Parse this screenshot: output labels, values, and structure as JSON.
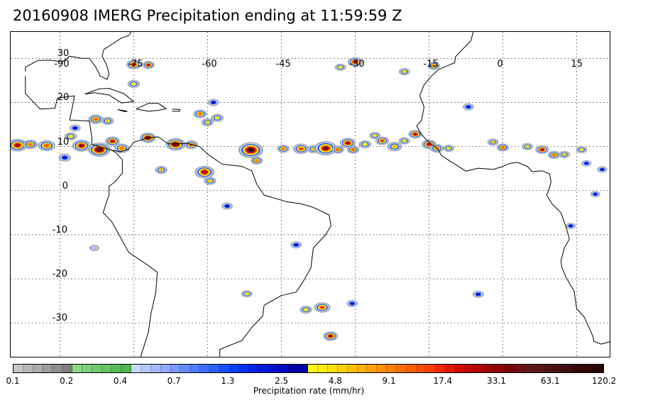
{
  "title": "20160908 IMERG Precipitation ending at 11:59:59 Z",
  "map": {
    "lon_range": [
      -100,
      22
    ],
    "lat_range": [
      -38,
      36
    ],
    "grid_lines": true,
    "lon_ticks": [
      {
        "value": -90,
        "label": "-90"
      },
      {
        "value": -75,
        "label": "-75"
      },
      {
        "value": -60,
        "label": "-60"
      },
      {
        "value": -45,
        "label": "-45"
      },
      {
        "value": -30,
        "label": "-30"
      },
      {
        "value": -15,
        "label": "-15"
      },
      {
        "value": 0,
        "label": "0"
      },
      {
        "value": 15,
        "label": "15"
      }
    ],
    "lat_ticks": [
      {
        "value": 30,
        "label": "30"
      },
      {
        "value": 20,
        "label": "20"
      },
      {
        "value": 10,
        "label": "10"
      },
      {
        "value": 0,
        "label": "0"
      },
      {
        "value": -10,
        "label": "-10"
      },
      {
        "value": -20,
        "label": "-20"
      },
      {
        "value": -30,
        "label": "-30"
      }
    ],
    "coastline_color": "#000000",
    "coastlines": [
      [
        [
          -97,
          26
        ],
        [
          -97,
          22
        ],
        [
          -94,
          18.5
        ],
        [
          -91,
          18.7
        ],
        [
          -90.5,
          21
        ],
        [
          -87,
          21.5
        ],
        [
          -88,
          16
        ],
        [
          -84,
          15.8
        ],
        [
          -83.5,
          12
        ],
        [
          -83.5,
          10.5
        ],
        [
          -79.5,
          9.2
        ],
        [
          -77.8,
          8.8
        ],
        [
          -76,
          9.4
        ],
        [
          -75,
          11
        ],
        [
          -72,
          12
        ],
        [
          -70,
          12.2
        ],
        [
          -68,
          10.6
        ],
        [
          -64,
          10.7
        ],
        [
          -61.6,
          10
        ],
        [
          -60,
          8.3
        ],
        [
          -57,
          6
        ],
        [
          -53,
          5.5
        ],
        [
          -51,
          4.5
        ],
        [
          -50,
          1.5
        ],
        [
          -48.5,
          -1
        ],
        [
          -44,
          -2.5
        ],
        [
          -41,
          -3
        ],
        [
          -38.5,
          -3.8
        ],
        [
          -35.3,
          -5.5
        ],
        [
          -34.9,
          -8
        ],
        [
          -36,
          -10
        ],
        [
          -38.5,
          -13
        ],
        [
          -39,
          -17.5
        ],
        [
          -40.5,
          -20.5
        ],
        [
          -42,
          -23
        ],
        [
          -45,
          -23.8
        ],
        [
          -48.5,
          -26
        ],
        [
          -48.8,
          -28.5
        ],
        [
          -51,
          -31
        ],
        [
          -53,
          -34
        ],
        [
          -55,
          -34.9
        ],
        [
          -57.5,
          -36
        ],
        [
          -57.5,
          -38
        ]
      ],
      [
        [
          -97,
          -38
        ],
        [
          -73.6,
          -38
        ],
        [
          -73.4,
          -37
        ],
        [
          -72,
          -32
        ],
        [
          -71.5,
          -28
        ],
        [
          -70.5,
          -23
        ],
        [
          -70.2,
          -18.5
        ],
        [
          -72,
          -17
        ],
        [
          -76,
          -14
        ],
        [
          -78,
          -10
        ],
        [
          -79.5,
          -7
        ],
        [
          -81.2,
          -5
        ],
        [
          -80.5,
          -2.5
        ],
        [
          -80,
          -1
        ],
        [
          -80,
          1
        ],
        [
          -78.8,
          2
        ],
        [
          -77.3,
          4
        ],
        [
          -77.3,
          7
        ],
        [
          -78.5,
          8.5
        ],
        [
          -79.5,
          9.2
        ]
      ],
      [
        [
          -85,
          30
        ],
        [
          -84,
          30
        ],
        [
          -82.7,
          28
        ],
        [
          -81.8,
          26
        ],
        [
          -80.4,
          25.2
        ],
        [
          -80,
          26.5
        ],
        [
          -80.5,
          28.5
        ],
        [
          -81.4,
          30.5
        ],
        [
          -81.1,
          32
        ],
        [
          -79,
          33.5
        ],
        [
          -77.5,
          34.6
        ],
        [
          -76,
          35.2
        ],
        [
          -75.5,
          36
        ]
      ],
      [
        [
          -97,
          27
        ],
        [
          -97,
          28
        ],
        [
          -94.5,
          29.5
        ],
        [
          -92,
          29.6
        ],
        [
          -89.5,
          29.2
        ],
        [
          -88,
          30.5
        ],
        [
          -85.5,
          30
        ],
        [
          -85,
          30
        ]
      ],
      [
        [
          -84.9,
          21.9
        ],
        [
          -82,
          23.1
        ],
        [
          -80,
          23.2
        ],
        [
          -77,
          22
        ],
        [
          -75,
          20.2
        ],
        [
          -77.5,
          19.9
        ],
        [
          -80,
          21.7
        ],
        [
          -83,
          22.2
        ],
        [
          -84.9,
          21.9
        ]
      ],
      [
        [
          -74.5,
          18.5
        ],
        [
          -72,
          19.8
        ],
        [
          -70,
          19.8
        ],
        [
          -68.4,
          18.6
        ],
        [
          -70,
          18.2
        ],
        [
          -72,
          18
        ],
        [
          -74.5,
          18.5
        ]
      ],
      [
        [
          -78.3,
          18.4
        ],
        [
          -76.3,
          18
        ],
        [
          -76.8,
          17.9
        ],
        [
          -78.3,
          18.4
        ]
      ],
      [
        [
          -67.2,
          18.5
        ],
        [
          -65.6,
          18.4
        ],
        [
          -65.7,
          18
        ],
        [
          -67.2,
          18
        ]
      ],
      [
        [
          -6,
          36
        ],
        [
          -6.5,
          34
        ],
        [
          -9.6,
          30.4
        ],
        [
          -9.8,
          29
        ],
        [
          -13,
          27.5
        ],
        [
          -14.5,
          26
        ],
        [
          -16,
          24
        ],
        [
          -16.9,
          21.5
        ],
        [
          -16,
          19
        ],
        [
          -16.5,
          16
        ],
        [
          -17.5,
          14.7
        ],
        [
          -16.7,
          13
        ],
        [
          -15.5,
          11.5
        ],
        [
          -14.5,
          10.5
        ],
        [
          -13.2,
          9.5
        ],
        [
          -12.5,
          8
        ],
        [
          -11,
          6.9
        ],
        [
          -9,
          5.5
        ],
        [
          -7.5,
          4.4
        ],
        [
          -5,
          5.1
        ],
        [
          -2,
          4.8
        ],
        [
          0,
          5.5
        ],
        [
          1.5,
          6.2
        ],
        [
          3,
          6.4
        ],
        [
          5,
          5.5
        ],
        [
          6,
          4.3
        ],
        [
          8,
          4.5
        ],
        [
          9.5,
          3.8
        ],
        [
          9.8,
          2
        ],
        [
          9.3,
          0
        ],
        [
          8.9,
          -1
        ],
        [
          10,
          -3
        ],
        [
          11.8,
          -5
        ],
        [
          12.3,
          -6.5
        ],
        [
          13,
          -8.8
        ],
        [
          13.5,
          -11
        ],
        [
          12.5,
          -13
        ],
        [
          11.8,
          -16
        ],
        [
          12,
          -17.5
        ],
        [
          13,
          -20
        ],
        [
          14.5,
          -22.8
        ],
        [
          15,
          -26.8
        ],
        [
          16.5,
          -28.6
        ],
        [
          17.3,
          -30.5
        ],
        [
          18.3,
          -33
        ],
        [
          18.5,
          -34.2
        ],
        [
          20,
          -34.8
        ],
        [
          22,
          -34.2
        ]
      ]
    ]
  },
  "precip_cells": [
    {
      "lon": -98.6,
      "lat": 10.3,
      "r": 1.6,
      "v": 17
    },
    {
      "lon": -96,
      "lat": 10.5,
      "r": 1.2,
      "v": 6
    },
    {
      "lon": -92.7,
      "lat": 10.2,
      "r": 1.4,
      "v": 9
    },
    {
      "lon": -89,
      "lat": 7.5,
      "r": 1.0,
      "v": 2
    },
    {
      "lon": -87.8,
      "lat": 12.3,
      "r": 1.0,
      "v": 3
    },
    {
      "lon": -85.6,
      "lat": 10.2,
      "r": 1.5,
      "v": 25
    },
    {
      "lon": -82,
      "lat": 9.3,
      "r": 1.8,
      "v": 33
    },
    {
      "lon": -79.3,
      "lat": 11.2,
      "r": 1.2,
      "v": 14
    },
    {
      "lon": -77.4,
      "lat": 9.6,
      "r": 1.2,
      "v": 7
    },
    {
      "lon": -82.7,
      "lat": 16.2,
      "r": 1.2,
      "v": 9
    },
    {
      "lon": -80.3,
      "lat": 15.8,
      "r": 1.0,
      "v": 4
    },
    {
      "lon": -86.9,
      "lat": 14.2,
      "r": 0.9,
      "v": 2
    },
    {
      "lon": -75,
      "lat": 28.6,
      "r": 1.2,
      "v": 26
    },
    {
      "lon": -72,
      "lat": 28.5,
      "r": 1.0,
      "v": 15
    },
    {
      "lon": -75,
      "lat": 24.2,
      "r": 1.0,
      "v": 3
    },
    {
      "lon": -72.1,
      "lat": 12,
      "r": 1.3,
      "v": 33
    },
    {
      "lon": -66.5,
      "lat": 10.5,
      "r": 1.6,
      "v": 45
    },
    {
      "lon": -63.3,
      "lat": 10.4,
      "r": 1.1,
      "v": 12
    },
    {
      "lon": -69.4,
      "lat": 4.7,
      "r": 1.0,
      "v": 5
    },
    {
      "lon": -60.6,
      "lat": 4.2,
      "r": 1.6,
      "v": 18
    },
    {
      "lon": -59.5,
      "lat": 2.2,
      "r": 1.0,
      "v": 4
    },
    {
      "lon": -56,
      "lat": -3.5,
      "r": 0.9,
      "v": 2
    },
    {
      "lon": -61.5,
      "lat": 17.4,
      "r": 1.1,
      "v": 7
    },
    {
      "lon": -60,
      "lat": 15.5,
      "r": 1.0,
      "v": 4
    },
    {
      "lon": -58,
      "lat": 16.5,
      "r": 1.0,
      "v": 3
    },
    {
      "lon": -58.8,
      "lat": 20,
      "r": 0.9,
      "v": 2
    },
    {
      "lon": -51.2,
      "lat": 9.2,
      "r": 2.0,
      "v": 55
    },
    {
      "lon": -50,
      "lat": 6.8,
      "r": 1.0,
      "v": 6
    },
    {
      "lon": -44.6,
      "lat": 9.5,
      "r": 1.0,
      "v": 6
    },
    {
      "lon": -41,
      "lat": 9.5,
      "r": 1.3,
      "v": 10
    },
    {
      "lon": -38.5,
      "lat": 9.4,
      "r": 1.0,
      "v": 5
    },
    {
      "lon": -36,
      "lat": 9.6,
      "r": 1.8,
      "v": 28
    },
    {
      "lon": -33.5,
      "lat": 9.3,
      "r": 1.0,
      "v": 8
    },
    {
      "lon": -31.5,
      "lat": 10.8,
      "r": 1.3,
      "v": 16
    },
    {
      "lon": -30.4,
      "lat": 9.3,
      "r": 1.0,
      "v": 9
    },
    {
      "lon": -28,
      "lat": 10.5,
      "r": 1.0,
      "v": 3
    },
    {
      "lon": -24.5,
      "lat": 11.3,
      "r": 1.1,
      "v": 11
    },
    {
      "lon": -26,
      "lat": 12.5,
      "r": 0.9,
      "v": 3
    },
    {
      "lon": -22,
      "lat": 10,
      "r": 1.2,
      "v": 5
    },
    {
      "lon": -20,
      "lat": 11.3,
      "r": 0.9,
      "v": 3
    },
    {
      "lon": -17.8,
      "lat": 12.8,
      "r": 1.1,
      "v": 17
    },
    {
      "lon": -15,
      "lat": 10.5,
      "r": 1.2,
      "v": 14
    },
    {
      "lon": -13.4,
      "lat": 9.6,
      "r": 1.1,
      "v": 6
    },
    {
      "lon": -11,
      "lat": 9.6,
      "r": 0.9,
      "v": 3
    },
    {
      "lon": -30,
      "lat": 29.2,
      "r": 1.2,
      "v": 17
    },
    {
      "lon": -33,
      "lat": 28,
      "r": 0.9,
      "v": 3
    },
    {
      "lon": -14,
      "lat": 28.3,
      "r": 1.0,
      "v": 7
    },
    {
      "lon": -20,
      "lat": 27,
      "r": 0.9,
      "v": 3
    },
    {
      "lon": -7,
      "lat": 19,
      "r": 0.9,
      "v": 2
    },
    {
      "lon": -2,
      "lat": 11,
      "r": 0.9,
      "v": 5
    },
    {
      "lon": 0,
      "lat": 9.8,
      "r": 1.0,
      "v": 9
    },
    {
      "lon": 5,
      "lat": 10,
      "r": 0.9,
      "v": 4
    },
    {
      "lon": 8,
      "lat": 9.3,
      "r": 1.1,
      "v": 15
    },
    {
      "lon": 10.4,
      "lat": 8.1,
      "r": 1.0,
      "v": 7
    },
    {
      "lon": 12.5,
      "lat": 8.2,
      "r": 0.9,
      "v": 4
    },
    {
      "lon": 16,
      "lat": 9.3,
      "r": 0.9,
      "v": 3
    },
    {
      "lon": 17,
      "lat": 6.2,
      "r": 0.8,
      "v": 2
    },
    {
      "lon": 20.2,
      "lat": 4.8,
      "r": 0.8,
      "v": 2
    },
    {
      "lon": 18.8,
      "lat": -0.8,
      "r": 0.8,
      "v": 2
    },
    {
      "lon": 13.8,
      "lat": -8,
      "r": 0.8,
      "v": 2
    },
    {
      "lon": -42,
      "lat": -12.3,
      "r": 0.9,
      "v": 2
    },
    {
      "lon": -40,
      "lat": -27,
      "r": 1.0,
      "v": 3
    },
    {
      "lon": -36.7,
      "lat": -26.5,
      "r": 1.3,
      "v": 11
    },
    {
      "lon": -35,
      "lat": -33,
      "r": 1.2,
      "v": 22
    },
    {
      "lon": -30.6,
      "lat": -25.6,
      "r": 0.9,
      "v": 2
    },
    {
      "lon": -52,
      "lat": -23.4,
      "r": 0.9,
      "v": 3
    },
    {
      "lon": -5,
      "lat": -23.5,
      "r": 0.9,
      "v": 2
    },
    {
      "lon": -83,
      "lat": -13,
      "r": 0.8,
      "v": 0.5
    }
  ],
  "colorbar": {
    "colors": [
      "#c6c6c6",
      "#b8b8b8",
      "#aaaaaa",
      "#9c9c9c",
      "#8e8e8e",
      "#808080",
      "#88d888",
      "#7cd27c",
      "#70cb70",
      "#64c464",
      "#58bd58",
      "#4cb54c",
      "#c8d7ff",
      "#b4c8ff",
      "#a0b9ff",
      "#8caaff",
      "#789bff",
      "#648cff",
      "#507dff",
      "#3c6eff",
      "#285fff",
      "#1450ff",
      "#0040ff",
      "#0030ff",
      "#0020ef",
      "#0018e0",
      "#0010d0",
      "#0008c0",
      "#0000b0",
      "#0000a0",
      "#ffff00",
      "#ffef00",
      "#ffdf00",
      "#ffcf00",
      "#ffbf00",
      "#ffaf00",
      "#ff9f00",
      "#ff8f00",
      "#ff7f00",
      "#ff6f00",
      "#ff5f00",
      "#ff4f00",
      "#ff3f00",
      "#f02800",
      "#e01800",
      "#d00800",
      "#c00000",
      "#b00000",
      "#a00000",
      "#900000",
      "#800000",
      "#701010",
      "#601818",
      "#581818",
      "#501414",
      "#481010",
      "#400c0c",
      "#380808",
      "#300606",
      "#280404"
    ],
    "ticks": [
      "0.1",
      "0.2",
      "0.4",
      "0.7",
      "1.3",
      "2.5",
      "4.8",
      "9.1",
      "17.4",
      "33.1",
      "63.1",
      "120.2"
    ],
    "label": "Precipitation rate (mm/hr)"
  }
}
